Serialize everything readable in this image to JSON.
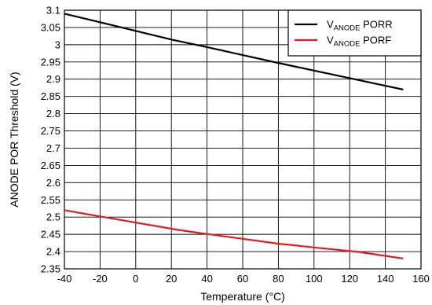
{
  "chart_data": {
    "type": "line",
    "xlabel": "Temperature (°C)",
    "ylabel": "ANODE POR Threshold (V)",
    "xlim": [
      -40,
      160
    ],
    "ylim": [
      2.35,
      3.1
    ],
    "x_ticks": [
      -40,
      -20,
      0,
      20,
      40,
      60,
      80,
      100,
      120,
      140,
      160
    ],
    "y_ticks": [
      2.35,
      2.4,
      2.45,
      2.5,
      2.55,
      2.6,
      2.65,
      2.7,
      2.75,
      2.8,
      2.85,
      2.9,
      2.95,
      3,
      3.05,
      3.1
    ],
    "x_tick_labels": [
      "-40",
      "-20",
      "0",
      "20",
      "40",
      "60",
      "80",
      "100",
      "120",
      "140",
      "160"
    ],
    "y_tick_labels": [
      "2.35",
      "2.4",
      "2.45",
      "2.5",
      "2.55",
      "2.6",
      "2.65",
      "2.7",
      "2.75",
      "2.8",
      "2.85",
      "2.9",
      "2.95",
      "3",
      "3.05",
      "3.1"
    ],
    "grid": true,
    "legend_position": "top-right",
    "series": [
      {
        "name_main": "V",
        "name_sub": "ANODE",
        "name_rest": " PORR",
        "color": "#000000",
        "x": [
          -40,
          -20,
          0,
          20,
          40,
          60,
          80,
          100,
          120,
          150
        ],
        "y": [
          3.09,
          3.065,
          3.04,
          3.015,
          2.993,
          2.97,
          2.947,
          2.925,
          2.903,
          2.87
        ]
      },
      {
        "name_main": "V",
        "name_sub": "ANODE",
        "name_rest": " PORF",
        "color": "#e41a1c",
        "x": [
          -40,
          -20,
          0,
          25,
          40,
          60,
          80,
          100,
          125,
          150
        ],
        "y": [
          2.52,
          2.502,
          2.484,
          2.462,
          2.451,
          2.437,
          2.423,
          2.412,
          2.399,
          2.38
        ]
      }
    ]
  }
}
